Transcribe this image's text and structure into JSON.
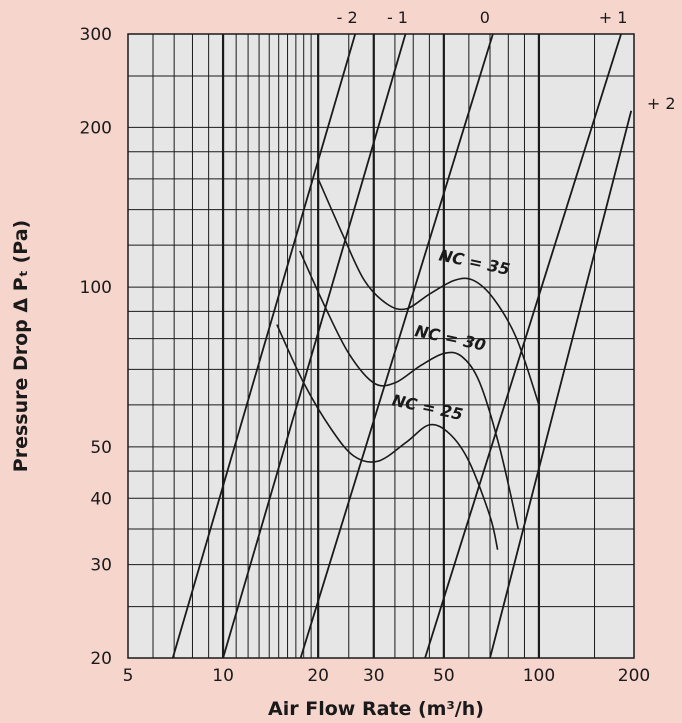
{
  "chart_data": {
    "type": "line",
    "x_scale": "log",
    "y_scale": "log",
    "xlabel": "Air Flow Rate (m³/h)",
    "ylabel": "Pressure Drop Δ Pₜ (Pa)",
    "xlim": [
      5,
      200
    ],
    "ylim": [
      20,
      300
    ],
    "x_ticks": [
      {
        "value": 5,
        "label": "5"
      },
      {
        "value": 10,
        "label": "10"
      },
      {
        "value": 20,
        "label": "20"
      },
      {
        "value": 30,
        "label": "30"
      },
      {
        "value": 50,
        "label": "50"
      },
      {
        "value": 100,
        "label": "100"
      },
      {
        "value": 200,
        "label": "200"
      }
    ],
    "y_ticks": [
      {
        "value": 20,
        "label": "20"
      },
      {
        "value": 30,
        "label": "30"
      },
      {
        "value": 40,
        "label": "40"
      },
      {
        "value": 50,
        "label": "50"
      },
      {
        "value": 100,
        "label": "100"
      },
      {
        "value": 200,
        "label": "200"
      },
      {
        "value": 300,
        "label": "300"
      }
    ],
    "x_grid": [
      6,
      7,
      8,
      9,
      10,
      11,
      12,
      13,
      14,
      15,
      16,
      17,
      18,
      19,
      20,
      25,
      30,
      35,
      40,
      45,
      50,
      60,
      70,
      80,
      90,
      100,
      150,
      200
    ],
    "y_grid": [
      20,
      25,
      30,
      35,
      40,
      45,
      50,
      60,
      70,
      80,
      90,
      100,
      120,
      140,
      160,
      180,
      200,
      250,
      300
    ],
    "major_x_grid": [
      10,
      20,
      30,
      50,
      100
    ],
    "grid": true,
    "diagonal_lines": [
      {
        "label": "- 2",
        "points": [
          [
            6.93,
            20
          ],
          [
            26.2,
            300
          ]
        ]
      },
      {
        "label": "- 1",
        "points": [
          [
            10,
            20
          ],
          [
            37.8,
            300
          ]
        ]
      },
      {
        "label": "0",
        "points": [
          [
            17.6,
            20
          ],
          [
            71.5,
            300
          ]
        ]
      },
      {
        "label": "+ 1",
        "points": [
          [
            43.6,
            20
          ],
          [
            182,
            300
          ]
        ]
      },
      {
        "label": "+ 2",
        "points": [
          [
            70,
            20
          ],
          [
            196,
            215
          ]
        ]
      }
    ],
    "series": [
      {
        "name": "NC = 35",
        "points": [
          [
            20,
            160
          ],
          [
            24,
            125
          ],
          [
            28,
            103
          ],
          [
            33,
            93
          ],
          [
            38,
            91
          ],
          [
            45,
            97
          ],
          [
            54,
            103
          ],
          [
            62,
            103
          ],
          [
            72,
            95
          ],
          [
            85,
            80
          ],
          [
            100,
            60
          ]
        ]
      },
      {
        "name": "NC = 30",
        "points": [
          [
            17.5,
            117
          ],
          [
            21,
            92
          ],
          [
            25,
            75
          ],
          [
            30,
            66
          ],
          [
            35,
            66
          ],
          [
            42,
            71
          ],
          [
            50,
            75
          ],
          [
            57,
            74
          ],
          [
            65,
            66
          ],
          [
            75,
            50
          ],
          [
            86,
            35
          ]
        ]
      },
      {
        "name": "NC = 25",
        "points": [
          [
            14.8,
            85
          ],
          [
            18,
            66
          ],
          [
            22,
            54
          ],
          [
            26,
            48
          ],
          [
            31,
            47
          ],
          [
            38,
            51
          ],
          [
            45,
            55
          ],
          [
            52,
            53
          ],
          [
            60,
            47
          ],
          [
            70,
            37
          ],
          [
            74,
            32
          ]
        ]
      }
    ],
    "annotations": [
      "NC = 35",
      "NC = 30",
      "NC = 25"
    ]
  }
}
